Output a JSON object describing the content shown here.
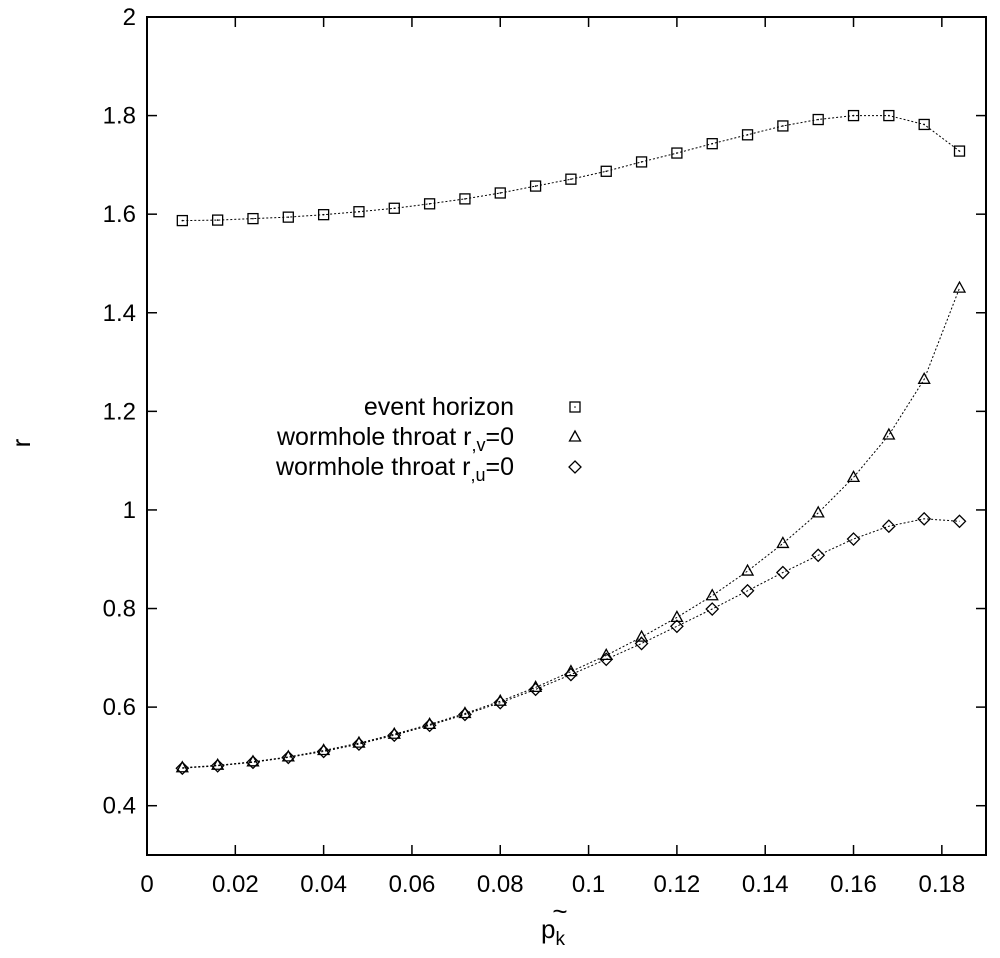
{
  "chart_data": {
    "type": "scatter",
    "xlabel_base": "p",
    "xlabel_accent": "~",
    "xlabel_sub": "k",
    "ylabel": "r",
    "xlim": [
      0,
      0.19
    ],
    "ylim": [
      0.3,
      2.0
    ],
    "xticks": [
      "0",
      "0.02",
      "0.04",
      "0.06",
      "0.08",
      "0.1",
      "0.12",
      "0.14",
      "0.16",
      "0.18"
    ],
    "yticks": [
      "0.4",
      "0.6",
      "0.8",
      "1",
      "1.2",
      "1.4",
      "1.6",
      "1.8",
      "2"
    ],
    "grid": false,
    "legend_position": "center-left",
    "x": [
      0.008,
      0.016,
      0.024,
      0.032,
      0.04,
      0.048,
      0.056,
      0.064,
      0.072,
      0.08,
      0.088,
      0.096,
      0.104,
      0.112,
      0.12,
      0.128,
      0.136,
      0.144,
      0.152,
      0.16,
      0.168,
      0.176,
      0.184
    ],
    "series": [
      {
        "name": "event horizon",
        "marker": "square",
        "values": [
          1.587,
          1.588,
          1.591,
          1.594,
          1.599,
          1.605,
          1.612,
          1.621,
          1.631,
          1.643,
          1.657,
          1.671,
          1.687,
          1.706,
          1.724,
          1.743,
          1.761,
          1.779,
          1.792,
          1.8,
          1.8,
          1.782,
          1.728
        ]
      },
      {
        "name": "wormhole throat r,v=0",
        "name_base": "wormhole throat r",
        "name_sub": ",v",
        "name_tail": "=0",
        "marker": "triangle",
        "values": [
          0.477,
          0.482,
          0.489,
          0.499,
          0.512,
          0.527,
          0.545,
          0.565,
          0.587,
          0.612,
          0.64,
          0.672,
          0.705,
          0.742,
          0.782,
          0.826,
          0.876,
          0.932,
          0.994,
          1.066,
          1.152,
          1.265,
          1.45
        ]
      },
      {
        "name": "wormhole throat r,u=0",
        "name_base": "wormhole throat r",
        "name_sub": ",u",
        "name_tail": "=0",
        "marker": "diamond",
        "values": [
          0.476,
          0.481,
          0.488,
          0.498,
          0.51,
          0.525,
          0.543,
          0.563,
          0.585,
          0.609,
          0.636,
          0.666,
          0.697,
          0.729,
          0.764,
          0.799,
          0.836,
          0.873,
          0.908,
          0.941,
          0.967,
          0.982,
          0.977
        ]
      }
    ]
  }
}
